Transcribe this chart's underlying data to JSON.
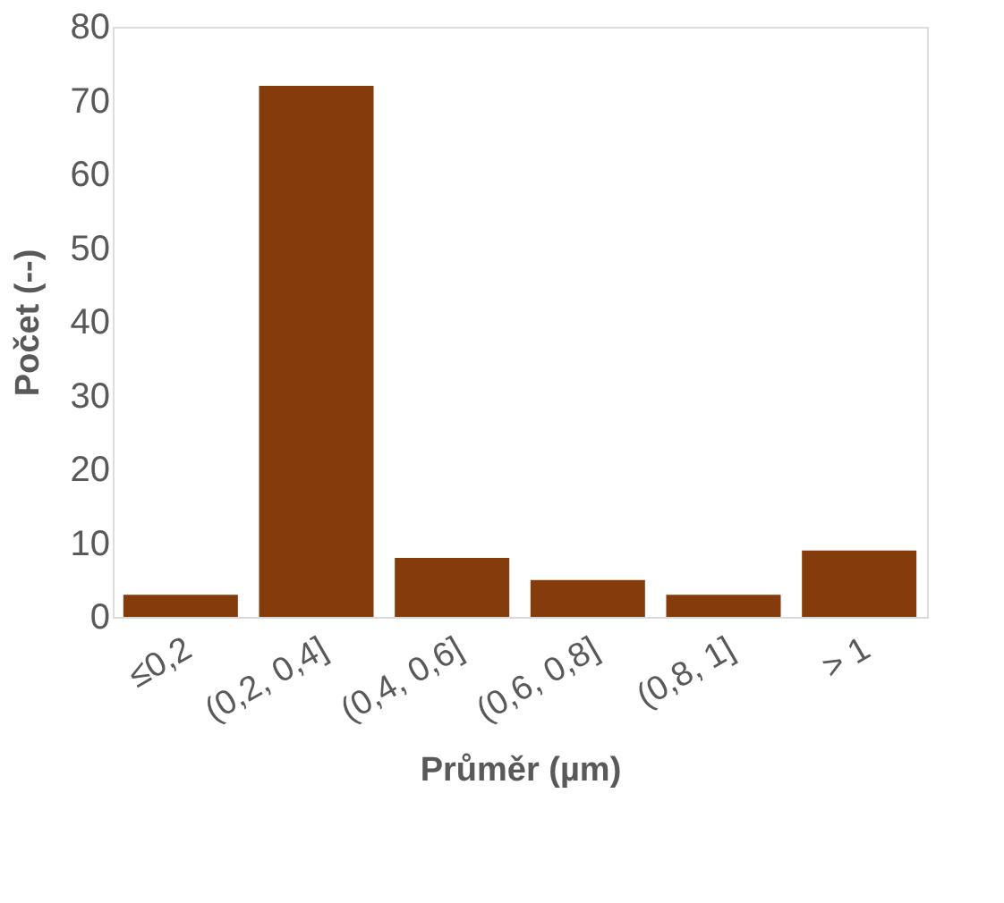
{
  "chart_data": {
    "type": "bar",
    "xlabel": "Průměr (µm)",
    "ylabel": "Počet (--)",
    "categories": [
      "≤0,2",
      "(0,2, 0,4]",
      "(0,4, 0,6]",
      "(0,6, 0,8]",
      "(0,8, 1]",
      "> 1"
    ],
    "values": [
      3,
      72,
      8,
      5,
      3,
      9
    ],
    "color": "#843c0c",
    "ylim": [
      0,
      80
    ],
    "yticks": [
      0,
      10,
      20,
      30,
      40,
      50,
      60,
      70,
      80
    ],
    "grid": false
  }
}
